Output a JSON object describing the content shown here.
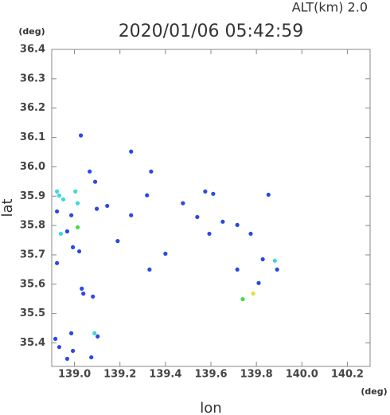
{
  "chart_data": {
    "type": "scatter",
    "title": "2020/01/06 05:42:59",
    "annotation": "ALT(km)  2.0",
    "x_unit": "(deg)",
    "y_unit": "(deg)",
    "x_label": "lon",
    "y_label": "lat",
    "xlim": [
      138.9,
      140.3
    ],
    "ylim": [
      35.32,
      36.4
    ],
    "xticks": [
      {
        "value": 139,
        "label": "139.0"
      },
      {
        "value": 139.2,
        "label": "139.2"
      },
      {
        "value": 139.4,
        "label": "139.4"
      },
      {
        "value": 139.6,
        "label": "139.6"
      },
      {
        "value": 139.8,
        "label": "139.8"
      },
      {
        "value": 140,
        "label": "140.0"
      },
      {
        "value": 140.2,
        "label": "140.2"
      }
    ],
    "yticks": [
      35.4,
      35.5,
      35.6,
      35.7,
      35.8,
      35.9,
      {
        "value": 36,
        "label": "36.0"
      },
      36.1,
      36.2,
      36.3,
      36.4
    ],
    "series": [
      {
        "color": "#2a48e8",
        "x": [
          139.028,
          138.986,
          138.968,
          138.993,
          139.021,
          138.923,
          139.032,
          139.039,
          139.081,
          138.916,
          138.933,
          138.986,
          138.993,
          138.968,
          139.102,
          139.074,
          139.067,
          139.091,
          139.098,
          139.144,
          139.249,
          139.319,
          139.477,
          139.575,
          139.61,
          139.54,
          139.652,
          139.593,
          139.716,
          139.775,
          139.853,
          139.33,
          139.4,
          139.716,
          139.828,
          139.891,
          139.81,
          139.249,
          139.337,
          139.19,
          138.923
        ],
        "values": [
          36.107,
          35.835,
          35.78,
          35.726,
          35.712,
          35.672,
          35.585,
          35.568,
          35.558,
          35.414,
          35.386,
          35.433,
          35.373,
          35.346,
          35.422,
          35.351,
          35.984,
          35.949,
          35.857,
          35.867,
          35.835,
          35.903,
          35.876,
          35.916,
          35.908,
          35.829,
          35.813,
          35.772,
          35.802,
          35.772,
          35.905,
          35.65,
          35.704,
          35.65,
          35.685,
          35.65,
          35.604,
          36.052,
          35.984,
          35.747,
          35.848
        ]
      },
      {
        "color": "#3cd8e0",
        "x": [
          138.923,
          138.933,
          138.951,
          139.004,
          139.014,
          138.94,
          139.088,
          139.881
        ],
        "values": [
          35.916,
          35.902,
          35.889,
          35.916,
          35.876,
          35.772,
          35.433,
          35.68
        ]
      },
      {
        "color": "#44dd44",
        "x": [
          139.014,
          139.74
        ],
        "values": [
          35.794,
          35.549
        ]
      },
      {
        "color": "#e0e040",
        "x": [
          139.786
        ],
        "values": [
          35.568
        ]
      }
    ]
  }
}
